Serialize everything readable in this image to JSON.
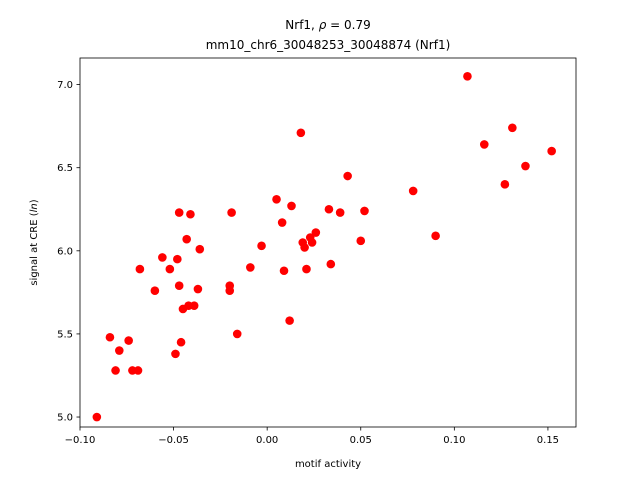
{
  "chart_data": {
    "type": "scatter",
    "title_line1_prefix": "Nrf1, ",
    "title_rho_symbol": "ρ",
    "title_rho_suffix": " = 0.79",
    "title_line2": "mm10_chr6_30048253_30048874 (Nrf1)",
    "xlabel": "motif activity",
    "ylabel_prefix": "signal at CRE (",
    "ylabel_italic": "ln",
    "ylabel_suffix": ")",
    "xlim": [
      -0.1,
      0.165
    ],
    "ylim": [
      4.94,
      7.16
    ],
    "xticks": [
      -0.1,
      -0.05,
      0.0,
      0.05,
      0.1,
      0.15
    ],
    "xtick_labels": [
      "−0.10",
      "−0.05",
      "0.00",
      "0.05",
      "0.10",
      "0.15"
    ],
    "yticks": [
      5.0,
      5.5,
      6.0,
      6.5,
      7.0
    ],
    "ytick_labels": [
      "5.0",
      "5.5",
      "6.0",
      "6.5",
      "7.0"
    ],
    "grid": false,
    "marker_color": "#ff0000",
    "points": [
      {
        "x": -0.091,
        "y": 5.0
      },
      {
        "x": -0.084,
        "y": 5.48
      },
      {
        "x": -0.081,
        "y": 5.28
      },
      {
        "x": -0.079,
        "y": 5.4
      },
      {
        "x": -0.074,
        "y": 5.46
      },
      {
        "x": -0.072,
        "y": 5.28
      },
      {
        "x": -0.069,
        "y": 5.28
      },
      {
        "x": -0.068,
        "y": 5.89
      },
      {
        "x": -0.06,
        "y": 5.76
      },
      {
        "x": -0.056,
        "y": 5.96
      },
      {
        "x": -0.052,
        "y": 5.89
      },
      {
        "x": -0.049,
        "y": 5.38
      },
      {
        "x": -0.048,
        "y": 5.95
      },
      {
        "x": -0.047,
        "y": 5.79
      },
      {
        "x": -0.047,
        "y": 6.23
      },
      {
        "x": -0.046,
        "y": 5.45
      },
      {
        "x": -0.045,
        "y": 5.65
      },
      {
        "x": -0.043,
        "y": 6.07
      },
      {
        "x": -0.042,
        "y": 5.67
      },
      {
        "x": -0.041,
        "y": 6.22
      },
      {
        "x": -0.039,
        "y": 5.67
      },
      {
        "x": -0.037,
        "y": 5.77
      },
      {
        "x": -0.036,
        "y": 6.01
      },
      {
        "x": -0.02,
        "y": 5.79
      },
      {
        "x": -0.02,
        "y": 5.76
      },
      {
        "x": -0.019,
        "y": 6.23
      },
      {
        "x": -0.016,
        "y": 5.5
      },
      {
        "x": -0.009,
        "y": 5.9
      },
      {
        "x": -0.003,
        "y": 6.03
      },
      {
        "x": 0.005,
        "y": 6.31
      },
      {
        "x": 0.008,
        "y": 6.17
      },
      {
        "x": 0.009,
        "y": 5.88
      },
      {
        "x": 0.012,
        "y": 5.58
      },
      {
        "x": 0.013,
        "y": 6.27
      },
      {
        "x": 0.018,
        "y": 6.71
      },
      {
        "x": 0.019,
        "y": 6.05
      },
      {
        "x": 0.02,
        "y": 6.02
      },
      {
        "x": 0.021,
        "y": 5.89
      },
      {
        "x": 0.023,
        "y": 6.08
      },
      {
        "x": 0.024,
        "y": 6.05
      },
      {
        "x": 0.026,
        "y": 6.11
      },
      {
        "x": 0.033,
        "y": 6.25
      },
      {
        "x": 0.034,
        "y": 5.92
      },
      {
        "x": 0.039,
        "y": 6.23
      },
      {
        "x": 0.043,
        "y": 6.45
      },
      {
        "x": 0.05,
        "y": 6.06
      },
      {
        "x": 0.052,
        "y": 6.24
      },
      {
        "x": 0.078,
        "y": 6.36
      },
      {
        "x": 0.09,
        "y": 6.09
      },
      {
        "x": 0.107,
        "y": 7.05
      },
      {
        "x": 0.116,
        "y": 6.64
      },
      {
        "x": 0.127,
        "y": 6.4
      },
      {
        "x": 0.131,
        "y": 6.74
      },
      {
        "x": 0.138,
        "y": 6.51
      },
      {
        "x": 0.152,
        "y": 6.6
      }
    ]
  }
}
